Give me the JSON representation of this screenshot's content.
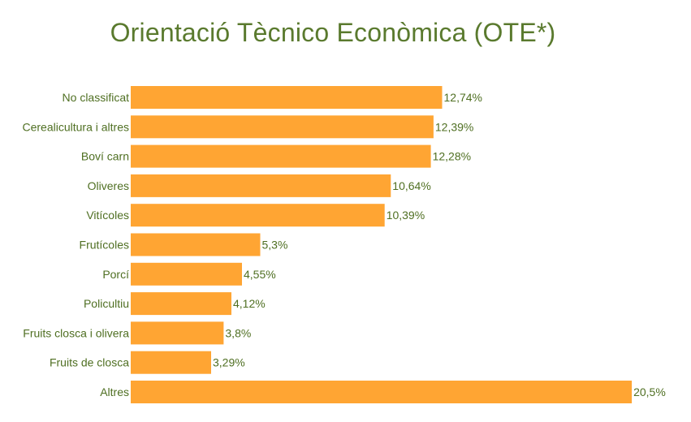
{
  "chart_data": {
    "type": "bar",
    "orientation": "horizontal",
    "title": "Orientació Tècnico Econòmica (OTE*)",
    "categories": [
      "No classificat",
      "Cerealicultura i altres",
      "Boví carn",
      "Oliveres",
      "Vitícoles",
      "Frutícoles",
      "Porcí",
      "Policultiu",
      "Fruits closca i olivera",
      "Fruits de closca",
      "Altres"
    ],
    "values": [
      12.74,
      12.39,
      12.28,
      10.64,
      10.39,
      5.3,
      4.55,
      4.12,
      3.8,
      3.29,
      20.5
    ],
    "value_labels": [
      "12,74%",
      "12,39%",
      "12,28%",
      "10,64%",
      "10,39%",
      "5,3%",
      "4,55%",
      "4,12%",
      "3,8%",
      "3,29%",
      "20,5%"
    ],
    "xlabel": "",
    "ylabel": "",
    "grid": false,
    "legend": "none",
    "colors": {
      "bar": "#ffa533",
      "text": "#4f6f22",
      "title": "#5a7a2e"
    }
  }
}
